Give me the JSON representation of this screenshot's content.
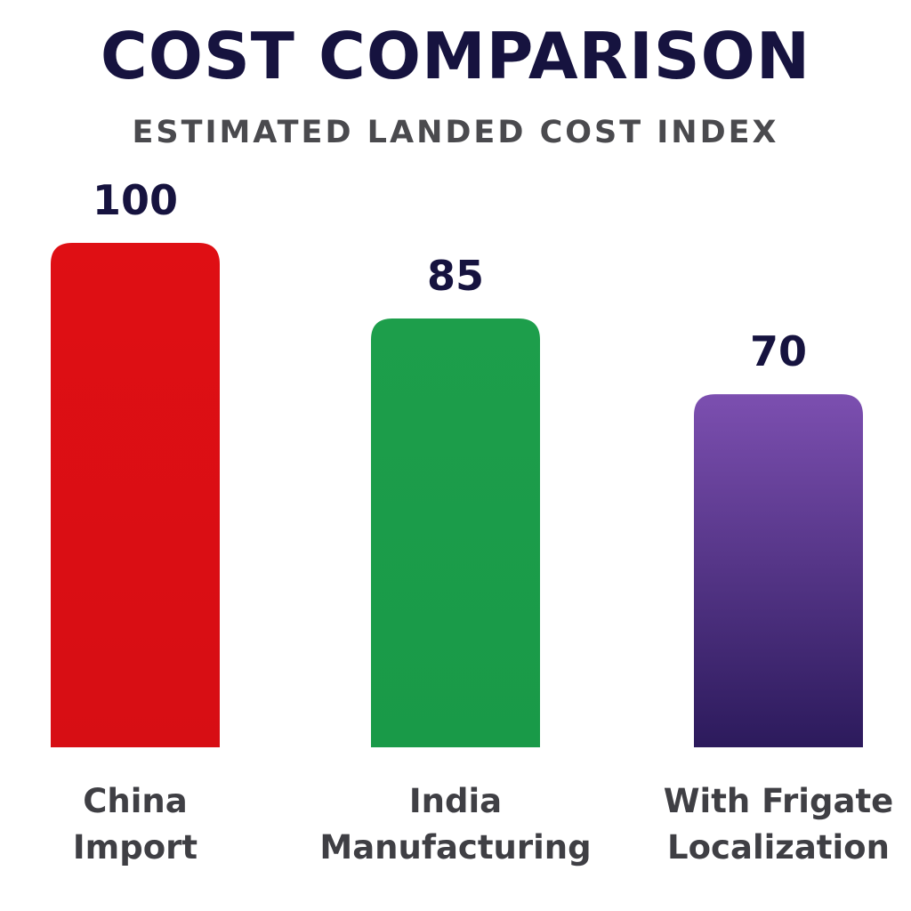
{
  "chart_data": {
    "type": "bar",
    "title": "COST COMPARISON",
    "subtitle": "ESTIMATED LANDED COST INDEX",
    "xlabel": "",
    "ylabel": "",
    "ylim": [
      0,
      100
    ],
    "grid": false,
    "categories": [
      [
        "China",
        "Import"
      ],
      [
        "India",
        "Manufacturing"
      ],
      [
        "With Frigate",
        "Localization"
      ]
    ],
    "values": [
      100,
      85,
      70
    ],
    "bar_colors": [
      {
        "top": "#df0f14",
        "bottom": "#d70e14"
      },
      {
        "top": "#1d9e4b",
        "bottom": "#199a48"
      },
      {
        "top": "#7c4fb0",
        "bottom": "#2c1a5c"
      }
    ],
    "text_colors": {
      "title": "#16133f",
      "subtitle": "#4a4a4e",
      "value_labels": "#16133f",
      "category_labels": "#3f3f44"
    }
  }
}
